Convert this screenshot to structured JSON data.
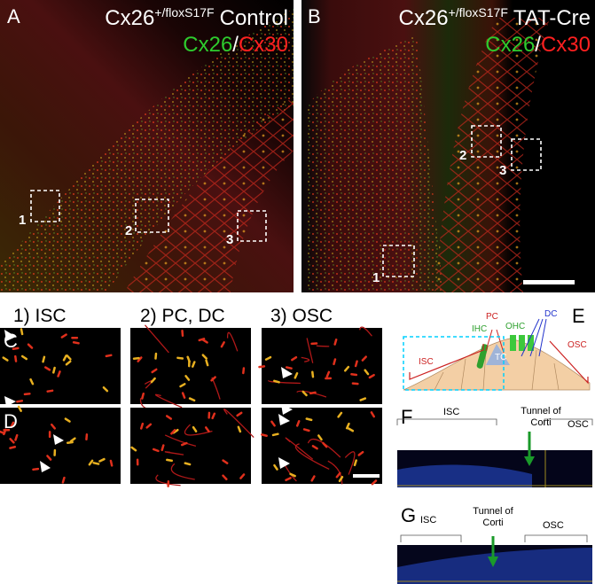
{
  "panels": {
    "A": {
      "label": "A",
      "gene": "Cx26",
      "superscript": "+/floxS17F",
      "condition": "Control",
      "stain_green": "Cx26",
      "separator": "/",
      "stain_red": "Cx30",
      "regions": [
        "1",
        "2",
        "3"
      ]
    },
    "B": {
      "label": "B",
      "gene": "Cx26",
      "superscript": "+/floxS17F",
      "condition": "TAT-Cre",
      "stain_green": "Cx26",
      "separator": "/",
      "stain_red": "Cx30",
      "regions": [
        "1",
        "2",
        "3"
      ]
    },
    "columns": [
      "1) ISC",
      "2) PC, DC",
      "3) OSC"
    ],
    "rows": [
      "C",
      "D"
    ],
    "E": {
      "label": "E",
      "labels": {
        "isc": "ISC",
        "pc": "PC",
        "ihc": "IHC",
        "ohc": "OHC",
        "dc": "DC",
        "osc": "OSC",
        "tc": "TC"
      }
    },
    "F": {
      "label": "F",
      "isc": "ISC",
      "tunnel": [
        "Tunnel of",
        "Corti"
      ],
      "osc": "OSC"
    },
    "G": {
      "label": "G",
      "isc": "ISC",
      "tunnel": [
        "Tunnel of",
        "Corti"
      ],
      "osc": "OSC"
    }
  }
}
